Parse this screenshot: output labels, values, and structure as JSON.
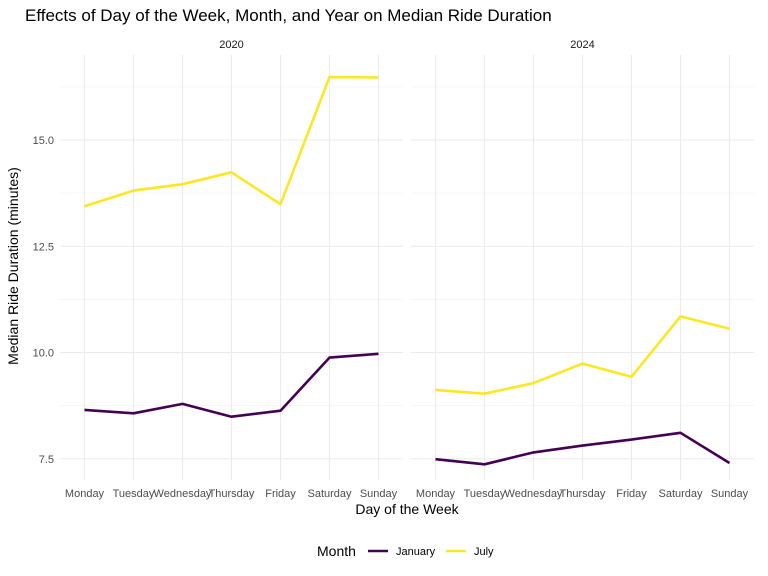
{
  "chart_data": {
    "type": "line",
    "title": "Effects of Day of the Week, Month, and Year on Median Ride Duration",
    "xlabel": "Day of the Week",
    "ylabel": "Median Ride Duration (minutes)",
    "ylim": [
      7.0,
      17.0
    ],
    "yticks": [
      "7.5",
      "10.0",
      "12.5",
      "15.0"
    ],
    "categories": [
      "Monday",
      "Tuesday",
      "Wednesday",
      "Thursday",
      "Friday",
      "Saturday",
      "Sunday"
    ],
    "legend": {
      "title": "Month",
      "position": "bottom"
    },
    "grid": true,
    "facets": [
      {
        "label": "2020",
        "series": [
          {
            "name": "January",
            "color": "#440154",
            "values": [
              8.65,
              8.57,
              8.79,
              8.49,
              8.63,
              9.88,
              9.97
            ]
          },
          {
            "name": "July",
            "color": "#FDE725",
            "values": [
              13.44,
              13.81,
              13.96,
              14.24,
              13.49,
              16.48,
              16.47
            ]
          }
        ]
      },
      {
        "label": "2024",
        "series": [
          {
            "name": "January",
            "color": "#440154",
            "values": [
              7.49,
              7.37,
              7.65,
              7.81,
              7.95,
              8.11,
              7.4
            ]
          },
          {
            "name": "July",
            "color": "#FDE725",
            "values": [
              9.12,
              9.03,
              9.28,
              9.74,
              9.43,
              10.85,
              10.56
            ]
          }
        ]
      }
    ]
  }
}
